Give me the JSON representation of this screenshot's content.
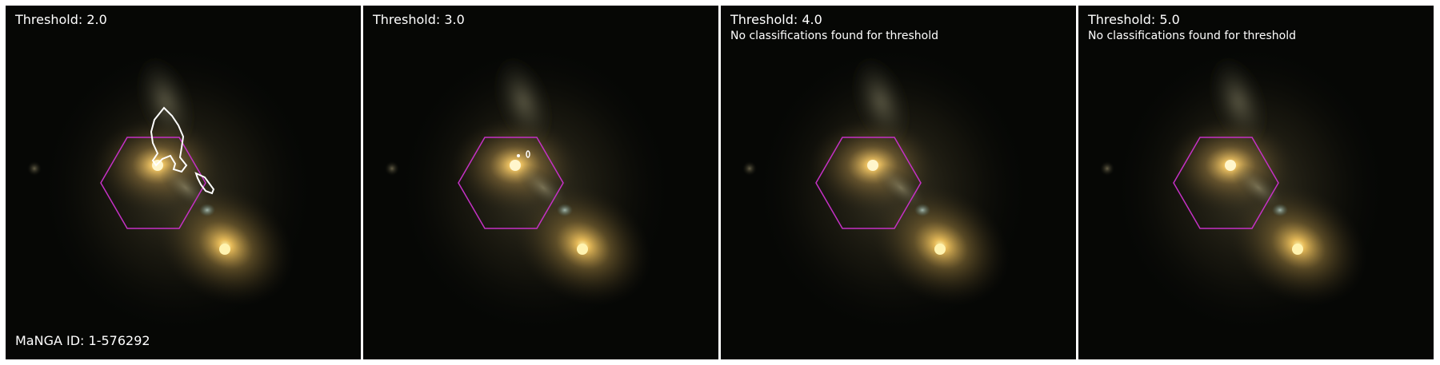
{
  "colors": {
    "hexagon": "#c531c5",
    "contour": "#ffffff",
    "label_text": "#ffffff"
  },
  "panels": [
    {
      "title": "Threshold: 2.0",
      "contours": "two-outlined-regions",
      "note": "",
      "footer": "MaNGA ID: 1-576292"
    },
    {
      "title": "Threshold: 3.0",
      "contours": "two-small-dots",
      "note": "",
      "footer": ""
    },
    {
      "title": "Threshold: 4.0",
      "contours": "none",
      "note": "No classifications found for threshold",
      "footer": ""
    },
    {
      "title": "Threshold: 5.0",
      "contours": "none",
      "note": "No classifications found for threshold",
      "footer": ""
    }
  ]
}
